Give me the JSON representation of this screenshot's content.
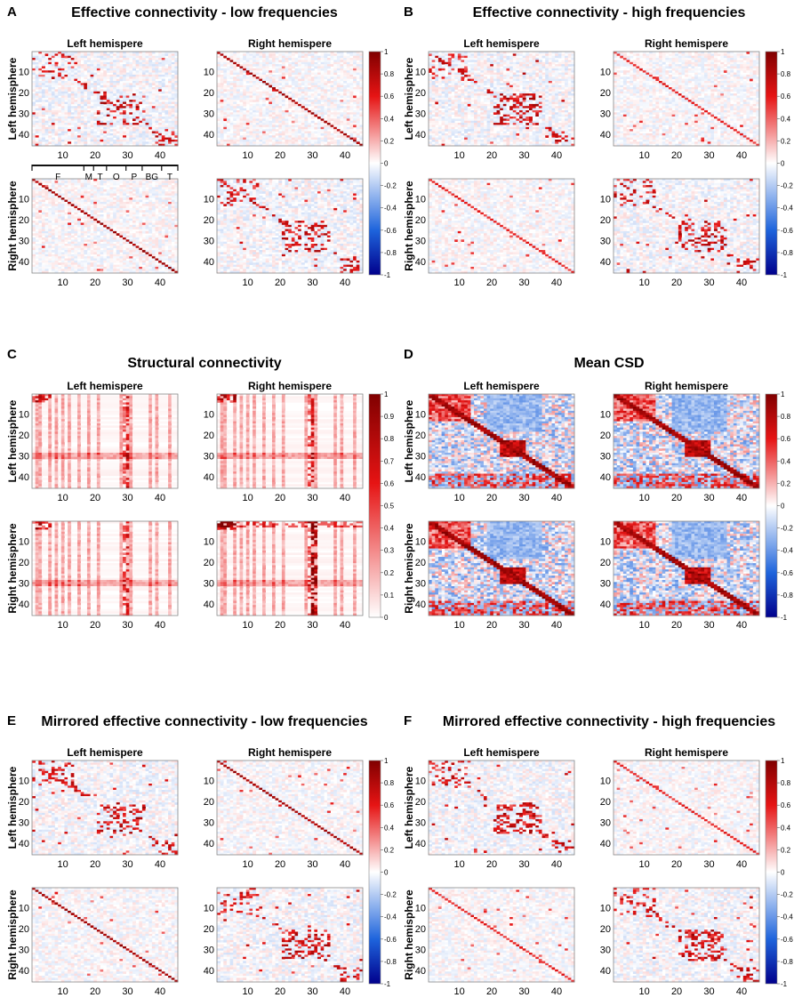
{
  "figure": {
    "panels": [
      {
        "letter": "A",
        "title": "Effective connectivity - low frequencies",
        "colormap": "diverging",
        "pattern": "effective_low",
        "scale_ticks": [
          "1",
          "0.8",
          "0.6",
          "0.4",
          "0.2",
          "0",
          "-0.2",
          "-0.4",
          "-0.6",
          "-0.8",
          "-1"
        ]
      },
      {
        "letter": "B",
        "title": "Effective connectivity - high frequencies",
        "colormap": "diverging",
        "pattern": "effective_high",
        "scale_ticks": [
          "1",
          "0.8",
          "0.6",
          "0.4",
          "0.2",
          "0",
          "-0.2",
          "-0.4",
          "-0.6",
          "-0.8",
          "-1"
        ]
      },
      {
        "letter": "C",
        "title": "Structural connectivity",
        "colormap": "sequential",
        "pattern": "structural",
        "scale_ticks": [
          "1",
          "0.9",
          "0.8",
          "0.7",
          "0.6",
          "0.5",
          "0.4",
          "0.3",
          "0.2",
          "0.1",
          "0"
        ]
      },
      {
        "letter": "D",
        "title": "Mean CSD",
        "colormap": "diverging",
        "pattern": "csd",
        "scale_ticks": [
          "1",
          "0.8",
          "0.6",
          "0.4",
          "0.2",
          "0",
          "-0.2",
          "-0.4",
          "-0.6",
          "-0.8",
          "-1"
        ]
      },
      {
        "letter": "E",
        "title": "Mirrored effective connectivity - low frequencies",
        "colormap": "diverging",
        "pattern": "mirrored_low",
        "scale_ticks": [
          "1",
          "0.8",
          "0.6",
          "0.4",
          "0.2",
          "0",
          "-0.2",
          "-0.4",
          "-0.6",
          "-0.8",
          "-1"
        ]
      },
      {
        "letter": "F",
        "title": "Mirrored effective connectivity - high frequencies",
        "colormap": "diverging",
        "pattern": "mirrored_high",
        "scale_ticks": [
          "1",
          "0.8",
          "0.6",
          "0.4",
          "0.2",
          "0",
          "-0.2",
          "-0.4",
          "-0.6",
          "-0.8",
          "-1"
        ]
      }
    ],
    "column_labels": [
      "Left hemispere",
      "Right hemispere"
    ],
    "row_labels": [
      "Left hemisphere",
      "Right hemisphere"
    ],
    "lobe_labels": [
      "F",
      "M",
      "T",
      "O",
      "P",
      "BG",
      "T"
    ]
  },
  "chart_data": {
    "type": "heatmap",
    "matrix_size": 45,
    "x_ticks": [
      10,
      20,
      30,
      40
    ],
    "y_ticks": [
      10,
      20,
      30,
      40
    ],
    "diverging_range": [
      -1,
      1
    ],
    "sequential_range": [
      0,
      1
    ],
    "lobe_boundaries": [
      0,
      16,
      19,
      23,
      29,
      34,
      40,
      45
    ],
    "matrix_values": "approximate procedural reconstruction of 45x45 connectivity matrices (individual cell values not legible)"
  },
  "colors": {
    "neg_dark": "#00008c",
    "neg": "#1e64dc",
    "zero": "#ffffff",
    "pos": "#e61414",
    "pos_dark": "#800000"
  }
}
